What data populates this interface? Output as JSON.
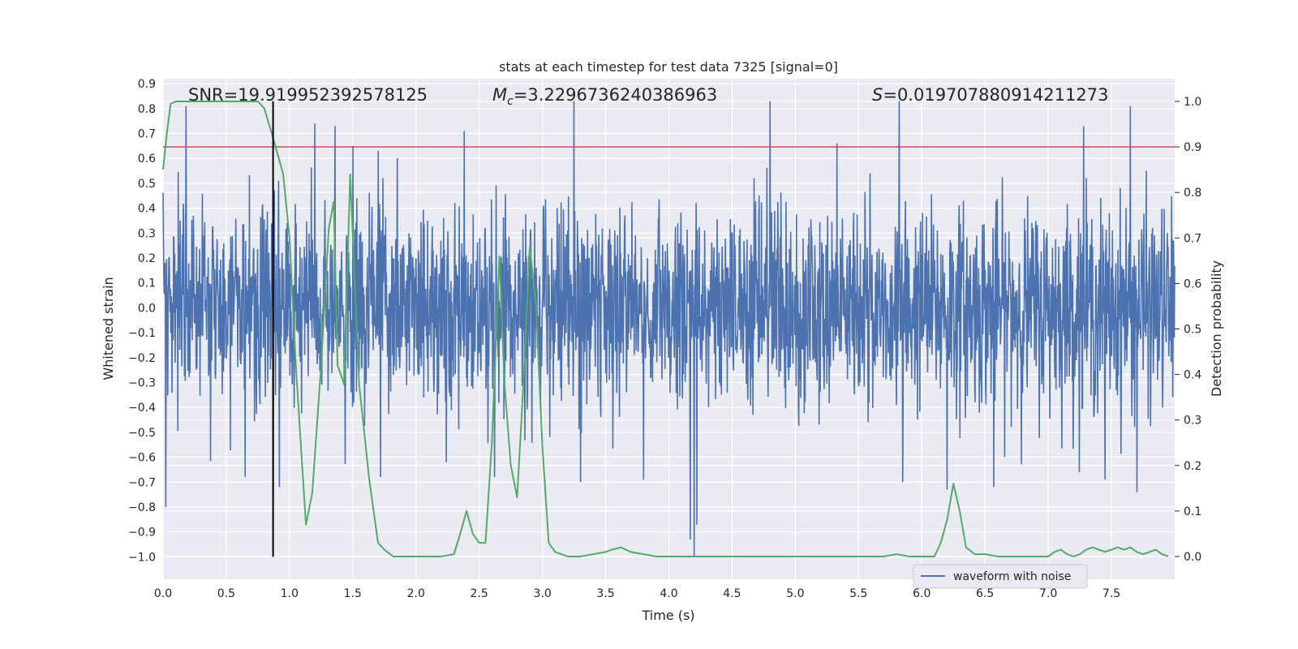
{
  "chart_data": {
    "type": "line",
    "title": "stats at each timestep for test data 7325 [signal=0]",
    "xlabel": "Time (s)",
    "ylabel_left": "Whitened strain",
    "ylabel_right": "Detection probability",
    "xlim": [
      0.0,
      8.0
    ],
    "ylim_left": [
      -1.09,
      0.92
    ],
    "ylim_right": [
      -0.05,
      1.05
    ],
    "x_ticks": [
      "0.0",
      "0.5",
      "1.0",
      "1.5",
      "2.0",
      "2.5",
      "3.0",
      "3.5",
      "4.0",
      "4.5",
      "5.0",
      "5.5",
      "6.0",
      "6.5",
      "7.0",
      "7.5"
    ],
    "y_left_ticks": [
      "0.9",
      "0.8",
      "0.7",
      "0.6",
      "0.5",
      "0.4",
      "0.3",
      "0.2",
      "0.1",
      "0.0",
      "−0.1",
      "−0.2",
      "−0.3",
      "−0.4",
      "−0.5",
      "−0.6",
      "−0.7",
      "−0.8",
      "−0.9",
      "−1.0"
    ],
    "y_right_ticks": [
      "1.0",
      "0.9",
      "0.8",
      "0.7",
      "0.6",
      "0.5",
      "0.4",
      "0.3",
      "0.2",
      "0.1",
      "0.0"
    ],
    "grid": true,
    "legend_position": "lower-right",
    "annotations": {
      "snr": "SNR=19.919952392578125",
      "mc_symbol": "M",
      "mc_sub": "c",
      "mc_value": "=3.2296736240386963",
      "s_symbol": "S",
      "s_value": "=0.019707880914211273"
    },
    "threshold": {
      "axis": "right",
      "y": 0.9,
      "color": "#c44e52"
    },
    "marker_line": {
      "x": 0.87,
      "y_from": -1.0,
      "y_to": 0.83,
      "color": "#000000"
    },
    "series": [
      {
        "name": "waveform with noise",
        "axis": "left",
        "color": "#4c72b0",
        "peaks": [
          {
            "x": 0.02,
            "y": -0.8
          },
          {
            "x": 0.18,
            "y": 0.81
          },
          {
            "x": 0.65,
            "y": -0.68
          },
          {
            "x": 0.87,
            "y": -0.85
          },
          {
            "x": 0.92,
            "y": -0.72
          },
          {
            "x": 1.2,
            "y": 0.74
          },
          {
            "x": 1.36,
            "y": 0.73
          },
          {
            "x": 1.5,
            "y": 0.65
          },
          {
            "x": 1.7,
            "y": 0.63
          },
          {
            "x": 1.72,
            "y": -0.68
          },
          {
            "x": 2.38,
            "y": 0.71
          },
          {
            "x": 2.62,
            "y": -0.68
          },
          {
            "x": 3.25,
            "y": 0.83
          },
          {
            "x": 3.3,
            "y": -0.7
          },
          {
            "x": 3.8,
            "y": -0.69
          },
          {
            "x": 4.17,
            "y": -0.93
          },
          {
            "x": 4.2,
            "y": -1.0
          },
          {
            "x": 4.22,
            "y": -0.87
          },
          {
            "x": 4.8,
            "y": 0.83
          },
          {
            "x": 5.33,
            "y": 0.66
          },
          {
            "x": 5.82,
            "y": 0.83
          },
          {
            "x": 5.85,
            "y": -0.7
          },
          {
            "x": 6.2,
            "y": -0.73
          },
          {
            "x": 6.57,
            "y": -0.72
          },
          {
            "x": 7.28,
            "y": 0.73
          },
          {
            "x": 7.45,
            "y": -0.69
          },
          {
            "x": 7.65,
            "y": 0.81
          },
          {
            "x": 7.7,
            "y": -0.74
          }
        ]
      },
      {
        "name": "",
        "axis": "right",
        "color": "#55a868",
        "x": [
          0.0,
          0.03,
          0.06,
          0.1,
          0.2,
          0.3,
          0.4,
          0.5,
          0.6,
          0.7,
          0.75,
          0.8,
          0.87,
          0.95,
          1.0,
          1.05,
          1.1,
          1.13,
          1.18,
          1.25,
          1.31,
          1.35,
          1.38,
          1.43,
          1.48,
          1.55,
          1.63,
          1.7,
          1.75,
          1.82,
          1.9,
          2.0,
          2.1,
          2.2,
          2.3,
          2.35,
          2.4,
          2.45,
          2.5,
          2.55,
          2.6,
          2.66,
          2.7,
          2.75,
          2.8,
          2.85,
          2.9,
          2.95,
          3.0,
          3.05,
          3.1,
          3.2,
          3.3,
          3.4,
          3.5,
          3.55,
          3.62,
          3.7,
          3.8,
          3.9,
          4.0,
          4.1,
          4.2,
          4.3,
          4.4,
          4.5,
          4.6,
          4.7,
          4.8,
          4.9,
          5.0,
          5.1,
          5.2,
          5.3,
          5.4,
          5.5,
          5.6,
          5.7,
          5.8,
          5.9,
          6.0,
          6.1,
          6.15,
          6.2,
          6.25,
          6.3,
          6.35,
          6.42,
          6.5,
          6.6,
          6.7,
          6.8,
          6.9,
          7.0,
          7.05,
          7.1,
          7.15,
          7.2,
          7.25,
          7.3,
          7.35,
          7.4,
          7.45,
          7.5,
          7.55,
          7.6,
          7.65,
          7.7,
          7.75,
          7.8,
          7.85,
          7.9,
          7.95
        ],
        "y": [
          0.85,
          0.93,
          0.995,
          1.0,
          1.0,
          1.0,
          1.0,
          1.0,
          1.0,
          1.0,
          1.0,
          0.985,
          0.92,
          0.84,
          0.7,
          0.42,
          0.2,
          0.07,
          0.14,
          0.42,
          0.72,
          0.78,
          0.42,
          0.38,
          0.84,
          0.38,
          0.17,
          0.03,
          0.015,
          0.0,
          0.0,
          0.0,
          0.0,
          0.0,
          0.005,
          0.05,
          0.1,
          0.05,
          0.03,
          0.03,
          0.25,
          0.66,
          0.38,
          0.2,
          0.13,
          0.38,
          0.68,
          0.55,
          0.24,
          0.03,
          0.01,
          0.0,
          0.0,
          0.005,
          0.01,
          0.015,
          0.02,
          0.01,
          0.005,
          0.0,
          0.0,
          0.0,
          0.0,
          0.0,
          0.0,
          0.0,
          0.0,
          0.0,
          0.0,
          0.0,
          0.0,
          0.0,
          0.0,
          0.0,
          0.0,
          0.0,
          0.0,
          0.0,
          0.005,
          0.0,
          0.0,
          0.0,
          0.03,
          0.08,
          0.16,
          0.1,
          0.02,
          0.005,
          0.005,
          0.0,
          0.0,
          0.0,
          0.0,
          0.0,
          0.01,
          0.015,
          0.005,
          0.0,
          0.005,
          0.015,
          0.02,
          0.015,
          0.01,
          0.015,
          0.02,
          0.015,
          0.02,
          0.01,
          0.005,
          0.01,
          0.015,
          0.005,
          0.0
        ]
      }
    ]
  }
}
